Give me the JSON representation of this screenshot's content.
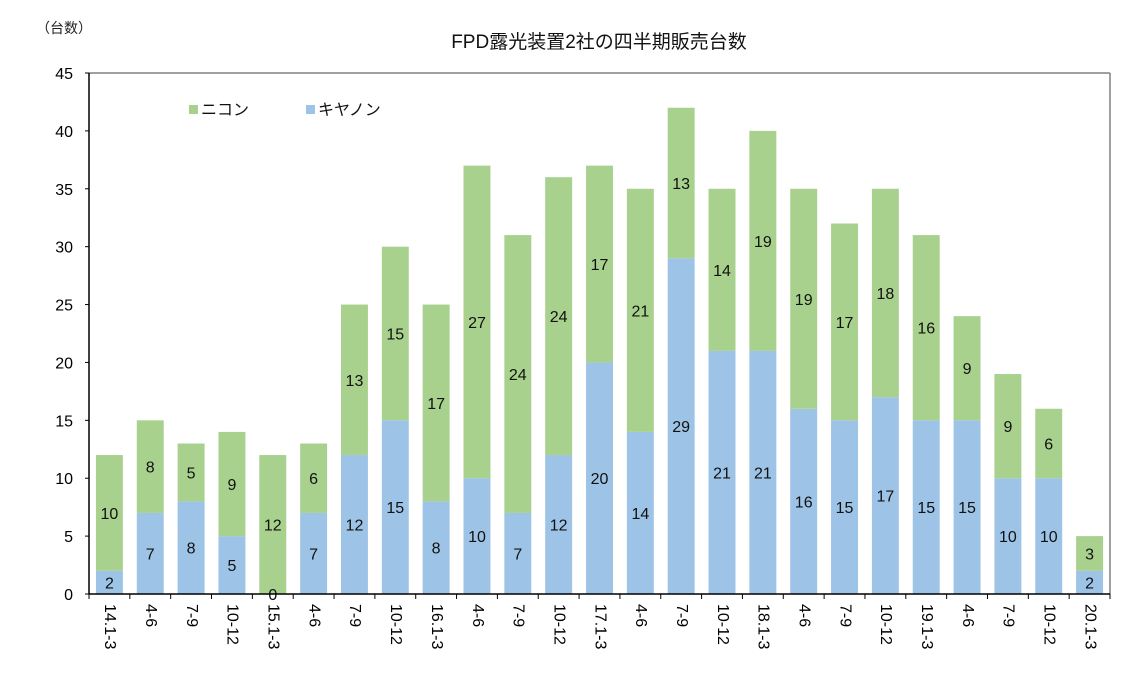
{
  "chart_data": {
    "type": "bar",
    "stacked": true,
    "title": "FPD露光装置2社の四半期販売台数",
    "ylabel": "（台数）",
    "xlabel": "",
    "ylim": [
      0,
      45
    ],
    "yticks": [
      0,
      5,
      10,
      15,
      20,
      25,
      30,
      35,
      40,
      45
    ],
    "grid": false,
    "legend_position": "top-left",
    "categories": [
      "14.1-3",
      "4-6",
      "7-9",
      "10-12",
      "15.1-3",
      "4-6",
      "7-9",
      "10-12",
      "16.1-3",
      "4-6",
      "7-9",
      "10-12",
      "17.1-3",
      "4-6",
      "7-9",
      "10-12",
      "18.1-3",
      "4-6",
      "7-9",
      "10-12",
      "19.1-3",
      "4-6",
      "7-9",
      "10-12",
      "20.1-3"
    ],
    "series": [
      {
        "name": "キヤノン",
        "color": "#9dc3e6",
        "values": [
          2,
          7,
          8,
          5,
          0,
          7,
          12,
          15,
          8,
          10,
          7,
          12,
          20,
          14,
          29,
          21,
          21,
          16,
          15,
          17,
          15,
          15,
          10,
          10,
          2
        ]
      },
      {
        "name": "ニコン",
        "color": "#a9d18e",
        "values": [
          10,
          8,
          5,
          9,
          12,
          6,
          13,
          15,
          17,
          27,
          24,
          24,
          17,
          21,
          13,
          14,
          19,
          19,
          17,
          18,
          16,
          9,
          9,
          6,
          3
        ]
      }
    ],
    "legend_order": [
      "ニコン",
      "キヤノン"
    ]
  }
}
